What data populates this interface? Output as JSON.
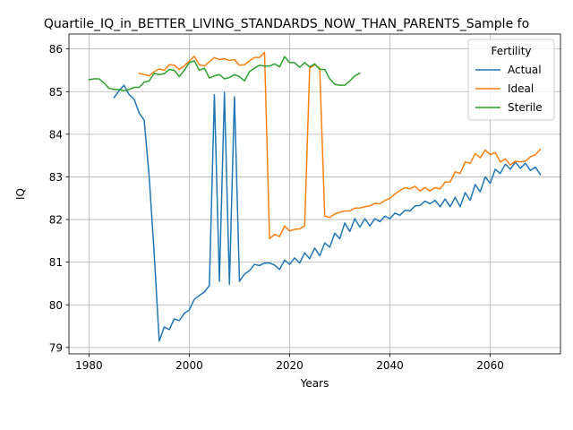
{
  "chart_data": {
    "type": "line",
    "title": "Quartile_IQ_in_BETTER_LIVING_STANDARDS_NOW_THAN_PARENTS_Sample fo",
    "xlabel": "Years",
    "ylabel": "IQ",
    "xlim": [
      1976,
      2074
    ],
    "ylim": [
      78.85,
      86.35
    ],
    "xticks": [
      1980,
      2000,
      2020,
      2040,
      2060
    ],
    "yticks": [
      79,
      80,
      81,
      82,
      83,
      84,
      85,
      86
    ],
    "grid": true,
    "legend": {
      "title": "Fertility",
      "position": "top-right"
    },
    "series": [
      {
        "name": "Actual",
        "color": "#1f77b4",
        "x": [
          1985,
          1986,
          1987,
          1988,
          1989,
          1990,
          1991,
          1992,
          1993,
          1994,
          1995,
          1996,
          1997,
          1998,
          1999,
          2000,
          2001,
          2002,
          2003,
          2004,
          2005,
          2006,
          2007,
          2008,
          2009,
          2010,
          2011,
          2012,
          2013,
          2014,
          2015,
          2016,
          2017,
          2018,
          2019,
          2020,
          2021,
          2022,
          2023,
          2024,
          2025,
          2026,
          2027,
          2028,
          2029,
          2030,
          2031,
          2032,
          2033,
          2034,
          2035,
          2036,
          2037,
          2038,
          2039,
          2040,
          2041,
          2042,
          2043,
          2044,
          2045,
          2046,
          2047,
          2048,
          2049,
          2050,
          2051,
          2052,
          2053,
          2054,
          2055,
          2056,
          2057,
          2058,
          2059,
          2060,
          2061,
          2062,
          2063,
          2064,
          2065,
          2066,
          2067,
          2068,
          2069,
          2070
        ],
        "y": [
          84.86,
          85.02,
          85.15,
          84.93,
          84.82,
          84.5,
          84.33,
          83.0,
          81.2,
          79.15,
          79.48,
          79.42,
          79.67,
          79.63,
          79.8,
          79.88,
          80.13,
          80.22,
          80.3,
          80.45,
          84.93,
          80.55,
          84.98,
          80.48,
          84.88,
          80.55,
          80.72,
          80.8,
          80.95,
          80.92,
          80.98,
          80.98,
          80.93,
          80.83,
          81.05,
          80.95,
          81.1,
          80.98,
          81.22,
          81.08,
          81.33,
          81.15,
          81.45,
          81.35,
          81.68,
          81.55,
          81.92,
          81.72,
          82.02,
          81.82,
          82.02,
          81.85,
          82.02,
          81.95,
          82.08,
          82.02,
          82.15,
          82.1,
          82.22,
          82.2,
          82.32,
          82.33,
          82.43,
          82.37,
          82.45,
          82.3,
          82.48,
          82.3,
          82.52,
          82.3,
          82.63,
          82.45,
          82.82,
          82.65,
          83.0,
          82.85,
          83.18,
          83.08,
          83.3,
          83.18,
          83.35,
          83.2,
          83.32,
          83.15,
          83.23,
          83.05
        ]
      },
      {
        "name": "Ideal",
        "color": "#ff7f0e",
        "x": [
          1990,
          1991,
          1992,
          1993,
          1994,
          1995,
          1996,
          1997,
          1998,
          1999,
          2000,
          2001,
          2002,
          2003,
          2004,
          2005,
          2006,
          2007,
          2008,
          2009,
          2010,
          2011,
          2012,
          2013,
          2014,
          2015,
          2016,
          2017,
          2018,
          2019,
          2020,
          2021,
          2022,
          2023,
          2024,
          2025,
          2026,
          2027,
          2028,
          2029,
          2030,
          2031,
          2032,
          2033,
          2034,
          2035,
          2036,
          2037,
          2038,
          2039,
          2040,
          2041,
          2042,
          2043,
          2044,
          2045,
          2046,
          2047,
          2048,
          2049,
          2050,
          2051,
          2052,
          2053,
          2054,
          2055,
          2056,
          2057,
          2058,
          2059,
          2060,
          2061,
          2062,
          2063,
          2064,
          2065,
          2066,
          2067,
          2068,
          2069,
          2070
        ],
        "y": [
          85.43,
          85.4,
          85.37,
          85.47,
          85.53,
          85.5,
          85.63,
          85.62,
          85.52,
          85.6,
          85.72,
          85.83,
          85.63,
          85.6,
          85.7,
          85.8,
          85.75,
          85.77,
          85.73,
          85.75,
          85.62,
          85.63,
          85.72,
          85.8,
          85.8,
          85.92,
          81.55,
          81.65,
          81.6,
          81.85,
          81.73,
          81.77,
          81.78,
          81.85,
          85.55,
          85.63,
          85.55,
          82.08,
          82.05,
          82.13,
          82.17,
          82.2,
          82.2,
          82.27,
          82.27,
          82.3,
          82.32,
          82.38,
          82.37,
          82.45,
          82.5,
          82.6,
          82.68,
          82.75,
          82.72,
          82.78,
          82.67,
          82.75,
          82.67,
          82.75,
          82.72,
          82.88,
          82.88,
          83.12,
          83.08,
          83.35,
          83.32,
          83.55,
          83.45,
          83.63,
          83.52,
          83.57,
          83.35,
          83.42,
          83.28,
          83.37,
          83.35,
          83.37,
          83.47,
          83.52,
          83.65
        ]
      },
      {
        "name": "Sterile",
        "color": "#2ca02c",
        "x": [
          1980,
          1981,
          1982,
          1983,
          1984,
          1985,
          1986,
          1987,
          1988,
          1989,
          1990,
          1991,
          1992,
          1993,
          1994,
          1995,
          1996,
          1997,
          1998,
          1999,
          2000,
          2001,
          2002,
          2003,
          2004,
          2005,
          2006,
          2007,
          2008,
          2009,
          2010,
          2011,
          2012,
          2013,
          2014,
          2015,
          2016,
          2017,
          2018,
          2019,
          2020,
          2021,
          2022,
          2023,
          2024,
          2025,
          2026,
          2027,
          2028,
          2029,
          2030,
          2031,
          2032,
          2033,
          2034
        ],
        "y": [
          85.28,
          85.3,
          85.3,
          85.2,
          85.08,
          85.05,
          85.05,
          85.02,
          85.05,
          85.1,
          85.1,
          85.22,
          85.25,
          85.43,
          85.4,
          85.42,
          85.52,
          85.5,
          85.35,
          85.5,
          85.68,
          85.72,
          85.5,
          85.55,
          85.32,
          85.37,
          85.4,
          85.3,
          85.33,
          85.4,
          85.35,
          85.25,
          85.47,
          85.55,
          85.62,
          85.6,
          85.6,
          85.65,
          85.58,
          85.82,
          85.68,
          85.68,
          85.57,
          85.68,
          85.58,
          85.65,
          85.52,
          85.52,
          85.3,
          85.17,
          85.15,
          85.15,
          85.25,
          85.37,
          85.43
        ]
      }
    ]
  }
}
